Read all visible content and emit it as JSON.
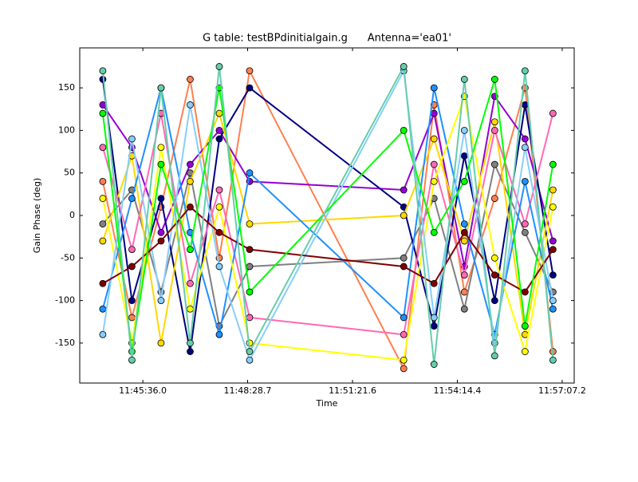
{
  "chart_data": {
    "type": "line",
    "title": "G table: testBPdinitialgain.g      Antenna='ea01'",
    "xlabel": "Time",
    "ylabel": "Gain Phase (deg)",
    "x": [
      42270,
      42318,
      42366,
      42414,
      42462,
      42512,
      42766,
      42816,
      42866,
      42916,
      42966,
      43012
    ],
    "xlim": [
      42232,
      43047
    ],
    "xticks": [
      {
        "value": 42336,
        "label": "11:45:36.0"
      },
      {
        "value": 42508.7,
        "label": "11:48:28.7"
      },
      {
        "value": 42681.6,
        "label": "11:51:21.6"
      },
      {
        "value": 42854.4,
        "label": "11:54:14.4"
      },
      {
        "value": 43027.2,
        "label": "11:57:07.2"
      }
    ],
    "ylim": [
      -197,
      197
    ],
    "yticks": [
      -150,
      -100,
      -50,
      0,
      50,
      100,
      150
    ],
    "markers": true,
    "series": [
      {
        "color": "#ff7f50",
        "values": [
          40,
          -120,
          10,
          160,
          -50,
          170,
          -180,
          130,
          -90,
          20,
          150,
          -160
        ]
      },
      {
        "color": "#9400d3",
        "values": [
          130,
          80,
          -20,
          60,
          100,
          40,
          30,
          120,
          -60,
          140,
          90,
          -30
        ]
      },
      {
        "color": "#808080",
        "values": [
          -10,
          30,
          -90,
          50,
          -130,
          -60,
          -50,
          20,
          -110,
          60,
          -20,
          -90
        ]
      },
      {
        "color": "#000080",
        "values": [
          160,
          -100,
          20,
          -160,
          90,
          150,
          10,
          -130,
          70,
          -100,
          130,
          -70
        ]
      },
      {
        "color": "#ffd700",
        "values": [
          -30,
          70,
          -150,
          40,
          120,
          -10,
          0,
          90,
          -30,
          110,
          -140,
          30
        ]
      },
      {
        "color": "#ff69b4",
        "values": [
          80,
          -40,
          120,
          -80,
          30,
          -120,
          -140,
          60,
          -70,
          100,
          -10,
          120
        ]
      },
      {
        "color": "#1e90ff",
        "values": [
          -110,
          20,
          150,
          -20,
          -140,
          50,
          -120,
          150,
          -10,
          -140,
          40,
          -110
        ]
      },
      {
        "color": "#ffff00",
        "values": [
          20,
          -150,
          80,
          -110,
          10,
          -150,
          -170,
          40,
          140,
          -50,
          -160,
          10
        ]
      },
      {
        "color": "#87cefa",
        "values": [
          -140,
          90,
          -100,
          130,
          -60,
          -170,
          170,
          -120,
          100,
          -150,
          80,
          -100
        ]
      },
      {
        "color": "#800000",
        "values": [
          -80,
          -60,
          -30,
          10,
          -20,
          -40,
          -60,
          -80,
          -20,
          -70,
          -90,
          -40
        ]
      },
      {
        "color": "#00ff00",
        "values": [
          120,
          -160,
          60,
          -40,
          150,
          -90,
          100,
          -20,
          40,
          160,
          -130,
          60
        ]
      },
      {
        "color": "#66cdaa",
        "values": [
          170,
          -170,
          150,
          -150,
          175,
          -160,
          175,
          -175,
          160,
          -165,
          170,
          -170
        ]
      }
    ]
  }
}
